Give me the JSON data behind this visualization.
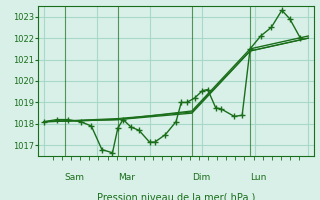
{
  "background_color": "#d8f0e8",
  "plot_bg_color": "#d8f0e8",
  "grid_color": "#a8d8c8",
  "line_color": "#1a6e1a",
  "xlabel": "Pression niveau de la mer( hPa )",
  "ylim": [
    1016.5,
    1023.5
  ],
  "yticks": [
    1017,
    1018,
    1019,
    1020,
    1021,
    1022,
    1023
  ],
  "day_labels": [
    "Sam",
    "Mar",
    "Dim",
    "Lun"
  ],
  "day_positions": [
    0.08,
    0.28,
    0.56,
    0.78
  ],
  "series1": [
    [
      0,
      1018.1
    ],
    [
      0.05,
      1018.2
    ],
    [
      0.09,
      1018.2
    ],
    [
      0.14,
      1018.1
    ],
    [
      0.18,
      1017.9
    ],
    [
      0.22,
      1016.8
    ],
    [
      0.26,
      1016.65
    ],
    [
      0.28,
      1017.8
    ],
    [
      0.3,
      1018.2
    ],
    [
      0.33,
      1017.85
    ],
    [
      0.36,
      1017.7
    ],
    [
      0.4,
      1017.15
    ],
    [
      0.42,
      1017.15
    ],
    [
      0.46,
      1017.5
    ],
    [
      0.5,
      1018.1
    ],
    [
      0.52,
      1019.0
    ],
    [
      0.54,
      1019.0
    ],
    [
      0.57,
      1019.2
    ],
    [
      0.6,
      1019.55
    ],
    [
      0.62,
      1019.6
    ],
    [
      0.65,
      1018.75
    ],
    [
      0.67,
      1018.7
    ],
    [
      0.72,
      1018.35
    ],
    [
      0.75,
      1018.4
    ],
    [
      0.78,
      1021.5
    ],
    [
      0.82,
      1022.1
    ],
    [
      0.86,
      1022.5
    ],
    [
      0.9,
      1023.3
    ],
    [
      0.93,
      1022.9
    ],
    [
      0.97,
      1022.0
    ]
  ],
  "series2": [
    [
      0,
      1018.1
    ],
    [
      0.28,
      1018.2
    ],
    [
      0.56,
      1018.5
    ],
    [
      0.78,
      1021.4
    ],
    [
      1.0,
      1022.0
    ]
  ],
  "series3": [
    [
      0,
      1018.1
    ],
    [
      0.28,
      1018.2
    ],
    [
      0.56,
      1018.6
    ],
    [
      0.78,
      1021.5
    ],
    [
      1.0,
      1022.1
    ]
  ],
  "series4": [
    [
      0,
      1018.1
    ],
    [
      0.28,
      1018.25
    ],
    [
      0.56,
      1018.55
    ],
    [
      0.78,
      1021.4
    ],
    [
      1.0,
      1022.0
    ]
  ]
}
